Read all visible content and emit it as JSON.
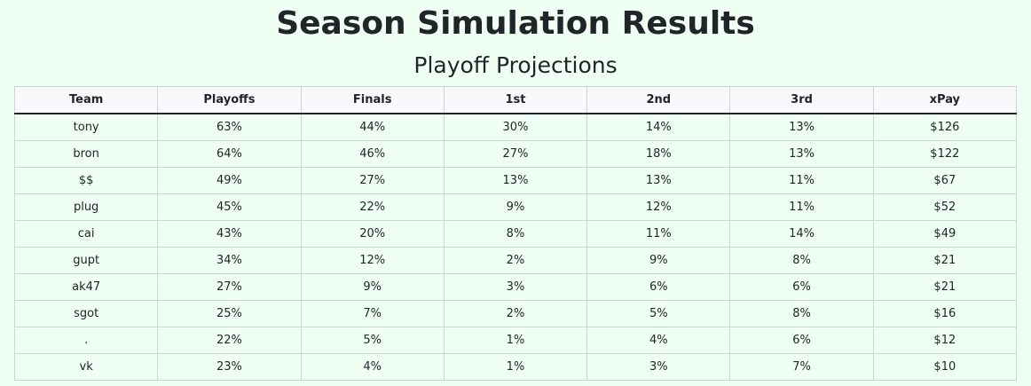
{
  "title": "Season Simulation Results",
  "subtitle": "Playoff Projections",
  "table": {
    "headers": [
      "Team",
      "Playoffs",
      "Finals",
      "1st",
      "2nd",
      "3rd",
      "xPay"
    ],
    "rows": [
      [
        "tony",
        "63%",
        "44%",
        "30%",
        "14%",
        "13%",
        "$126"
      ],
      [
        "bron",
        "64%",
        "46%",
        "27%",
        "18%",
        "13%",
        "$122"
      ],
      [
        "$$",
        "49%",
        "27%",
        "13%",
        "13%",
        "11%",
        "$67"
      ],
      [
        "plug",
        "45%",
        "22%",
        "9%",
        "12%",
        "11%",
        "$52"
      ],
      [
        "cai",
        "43%",
        "20%",
        "8%",
        "11%",
        "14%",
        "$49"
      ],
      [
        "gupt",
        "34%",
        "12%",
        "2%",
        "9%",
        "8%",
        "$21"
      ],
      [
        "ak47",
        "27%",
        "9%",
        "3%",
        "6%",
        "6%",
        "$21"
      ],
      [
        "sgot",
        "25%",
        "7%",
        "2%",
        "5%",
        "8%",
        "$16"
      ],
      [
        ".",
        "22%",
        "5%",
        "1%",
        "4%",
        "6%",
        "$12"
      ],
      [
        "vk",
        "23%",
        "4%",
        "1%",
        "3%",
        "7%",
        "$10"
      ]
    ]
  }
}
